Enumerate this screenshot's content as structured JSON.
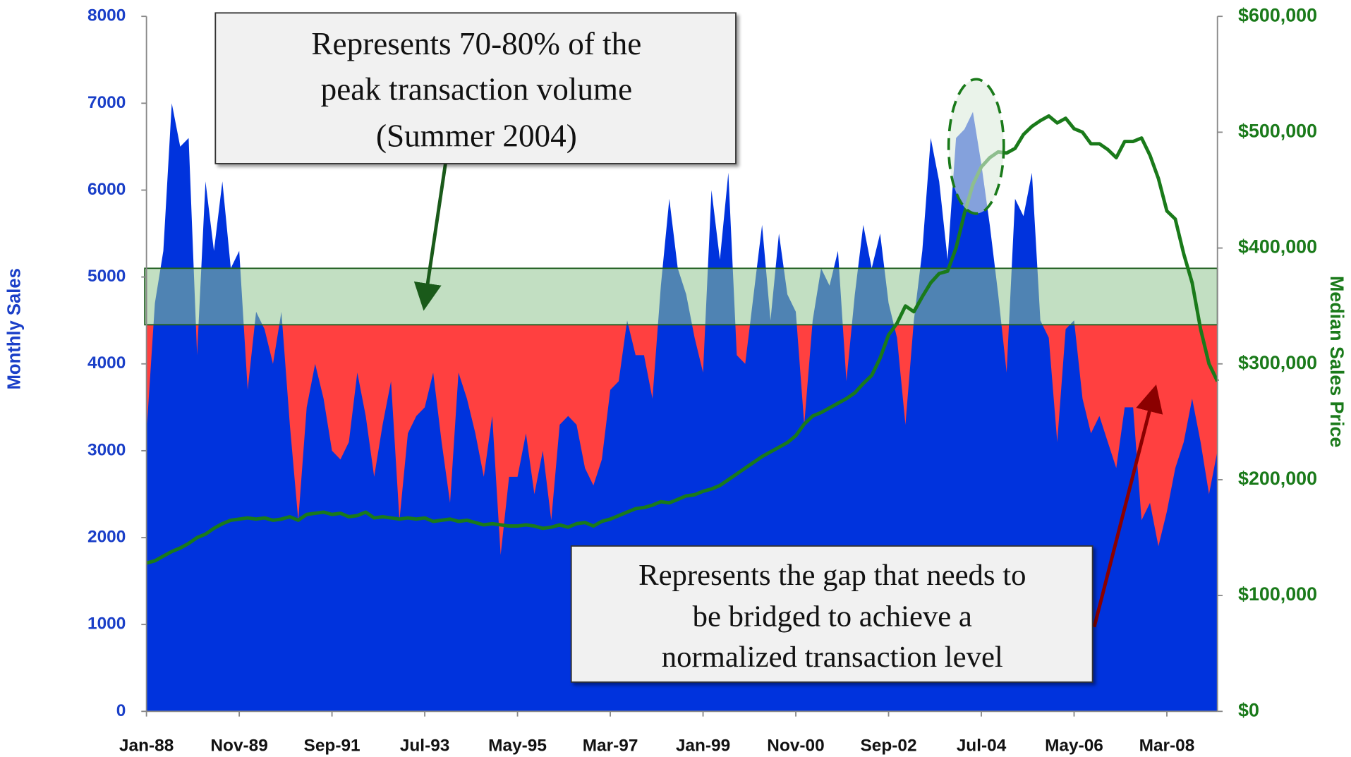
{
  "chart_data": {
    "type": "area_line",
    "y_label": "Monthly Sales",
    "y2_label": "Median Sales Price",
    "categories": [
      "Jan-88",
      null,
      null,
      null,
      null,
      null,
      null,
      null,
      null,
      null,
      null,
      "Nov-89",
      null,
      null,
      null,
      null,
      null,
      null,
      null,
      null,
      null,
      null,
      "Sep-91",
      null,
      null,
      null,
      null,
      null,
      null,
      null,
      null,
      null,
      null,
      "Jul-93",
      null,
      null,
      null,
      null,
      null,
      null,
      null,
      null,
      null,
      null,
      "May-95",
      null,
      null,
      null,
      null,
      null,
      null,
      null,
      null,
      null,
      null,
      "Mar-97",
      null,
      null,
      null,
      null,
      null,
      null,
      null,
      null,
      null,
      null,
      "Jan-99",
      null,
      null,
      null,
      null,
      null,
      null,
      null,
      null,
      null,
      null,
      "Nov-00",
      null,
      null,
      null,
      null,
      null,
      null,
      null,
      null,
      null,
      null,
      "Sep-02",
      null,
      null,
      null,
      null,
      null,
      null,
      null,
      null,
      null,
      null,
      "Jul-04",
      null,
      null,
      null,
      null,
      null,
      null,
      null,
      null,
      null,
      null,
      "May-06",
      null,
      null,
      null,
      null,
      null,
      null,
      null,
      null,
      null,
      null,
      "Mar-08",
      null,
      null,
      null,
      null,
      null,
      null
    ],
    "series": [
      {
        "color": "#0033dd",
        "values": [
          3200,
          4700,
          5300,
          7000,
          6500,
          6600,
          4100,
          6100,
          5300,
          6100,
          5100,
          5300,
          3700,
          4600,
          4400,
          4000,
          4600,
          3300,
          2200,
          3500,
          4000,
          3600,
          3000,
          2900,
          3100,
          3900,
          3400,
          2700,
          3300,
          3800,
          2200,
          3200,
          3400,
          3500,
          3900,
          3100,
          2400,
          3900,
          3600,
          3200,
          2700,
          3400,
          1800,
          2700,
          2700,
          3200,
          2500,
          3000,
          2200,
          3300,
          3400,
          3300,
          2800,
          2600,
          2900,
          3700,
          3800,
          4500,
          4100,
          4100,
          3600,
          4900,
          5900,
          5100,
          4800,
          4300,
          3900,
          6000,
          5200,
          6200,
          4100,
          4000,
          4800,
          5600,
          4500,
          5500,
          4800,
          4600,
          3300,
          4500,
          5100,
          4900,
          5300,
          3800,
          4800,
          5600,
          5100,
          5500,
          4700,
          4300,
          3300,
          4500,
          5300,
          6600,
          6100,
          5200,
          6600,
          6700,
          6900,
          6300,
          5600,
          4800,
          3900,
          5900,
          5700,
          6200,
          4500,
          4300,
          3100,
          4400,
          4500,
          3600,
          3200,
          3400,
          3100,
          2800,
          3500,
          3500,
          2200,
          2400,
          1900,
          2300,
          2800,
          3100,
          3600,
          3100,
          2500,
          3000
        ]
      },
      {
        "color": "#1a7a1a",
        "axis": "y2",
        "values": [
          128000,
          130000,
          134000,
          138000,
          141000,
          145000,
          150000,
          153000,
          158000,
          162000,
          165000,
          166000,
          167000,
          166000,
          167000,
          165000,
          166000,
          168000,
          165000,
          170000,
          171000,
          172000,
          170000,
          171000,
          168000,
          169000,
          172000,
          167000,
          168000,
          167000,
          166000,
          167000,
          166000,
          167000,
          164000,
          165000,
          166000,
          164000,
          165000,
          163000,
          161000,
          162000,
          161000,
          160000,
          160000,
          161000,
          160000,
          158000,
          159000,
          161000,
          159000,
          162000,
          163000,
          160000,
          164000,
          166000,
          169000,
          172000,
          175000,
          176000,
          178000,
          181000,
          180000,
          183000,
          186000,
          187000,
          190000,
          192000,
          195000,
          200000,
          205000,
          210000,
          215000,
          220000,
          224000,
          228000,
          232000,
          238000,
          248000,
          255000,
          258000,
          262000,
          266000,
          270000,
          275000,
          283000,
          290000,
          305000,
          325000,
          335000,
          350000,
          345000,
          358000,
          370000,
          378000,
          380000,
          400000,
          430000,
          455000,
          470000,
          478000,
          483000,
          482000,
          486000,
          498000,
          505000,
          510000,
          514000,
          508000,
          512000,
          503000,
          500000,
          490000,
          490000,
          485000,
          478000,
          492000,
          492000,
          495000,
          480000,
          460000,
          432000,
          425000,
          395000,
          370000,
          330000,
          300000,
          285000
        ]
      }
    ],
    "gap_color": "#ff4040",
    "reference_band": [
      4450,
      5100
    ],
    "band_color": "#8fc48f",
    "ylim": [
      0,
      8000
    ],
    "yticks": [
      0,
      1000,
      2000,
      3000,
      4000,
      5000,
      6000,
      7000,
      8000
    ],
    "y2lim": [
      0,
      600000
    ],
    "y2ticks": [
      {
        "value": 0,
        "label": "$0"
      },
      {
        "value": 100000,
        "label": "$100,000"
      },
      {
        "value": 200000,
        "label": "$200,000"
      },
      {
        "value": 300000,
        "label": "$300,000"
      },
      {
        "value": 400000,
        "label": "$400,000"
      },
      {
        "value": 500000,
        "label": "$500,000"
      },
      {
        "value": 600000,
        "label": "$600,000"
      }
    ],
    "annotations": [
      {
        "lines": [
          "Represents 70-80% of the",
          "peak transaction volume",
          "(Summer 2004)"
        ]
      },
      {
        "lines": [
          "Represents the gap that needs to",
          "be bridged to achieve a",
          "normalized transaction level"
        ]
      }
    ]
  }
}
